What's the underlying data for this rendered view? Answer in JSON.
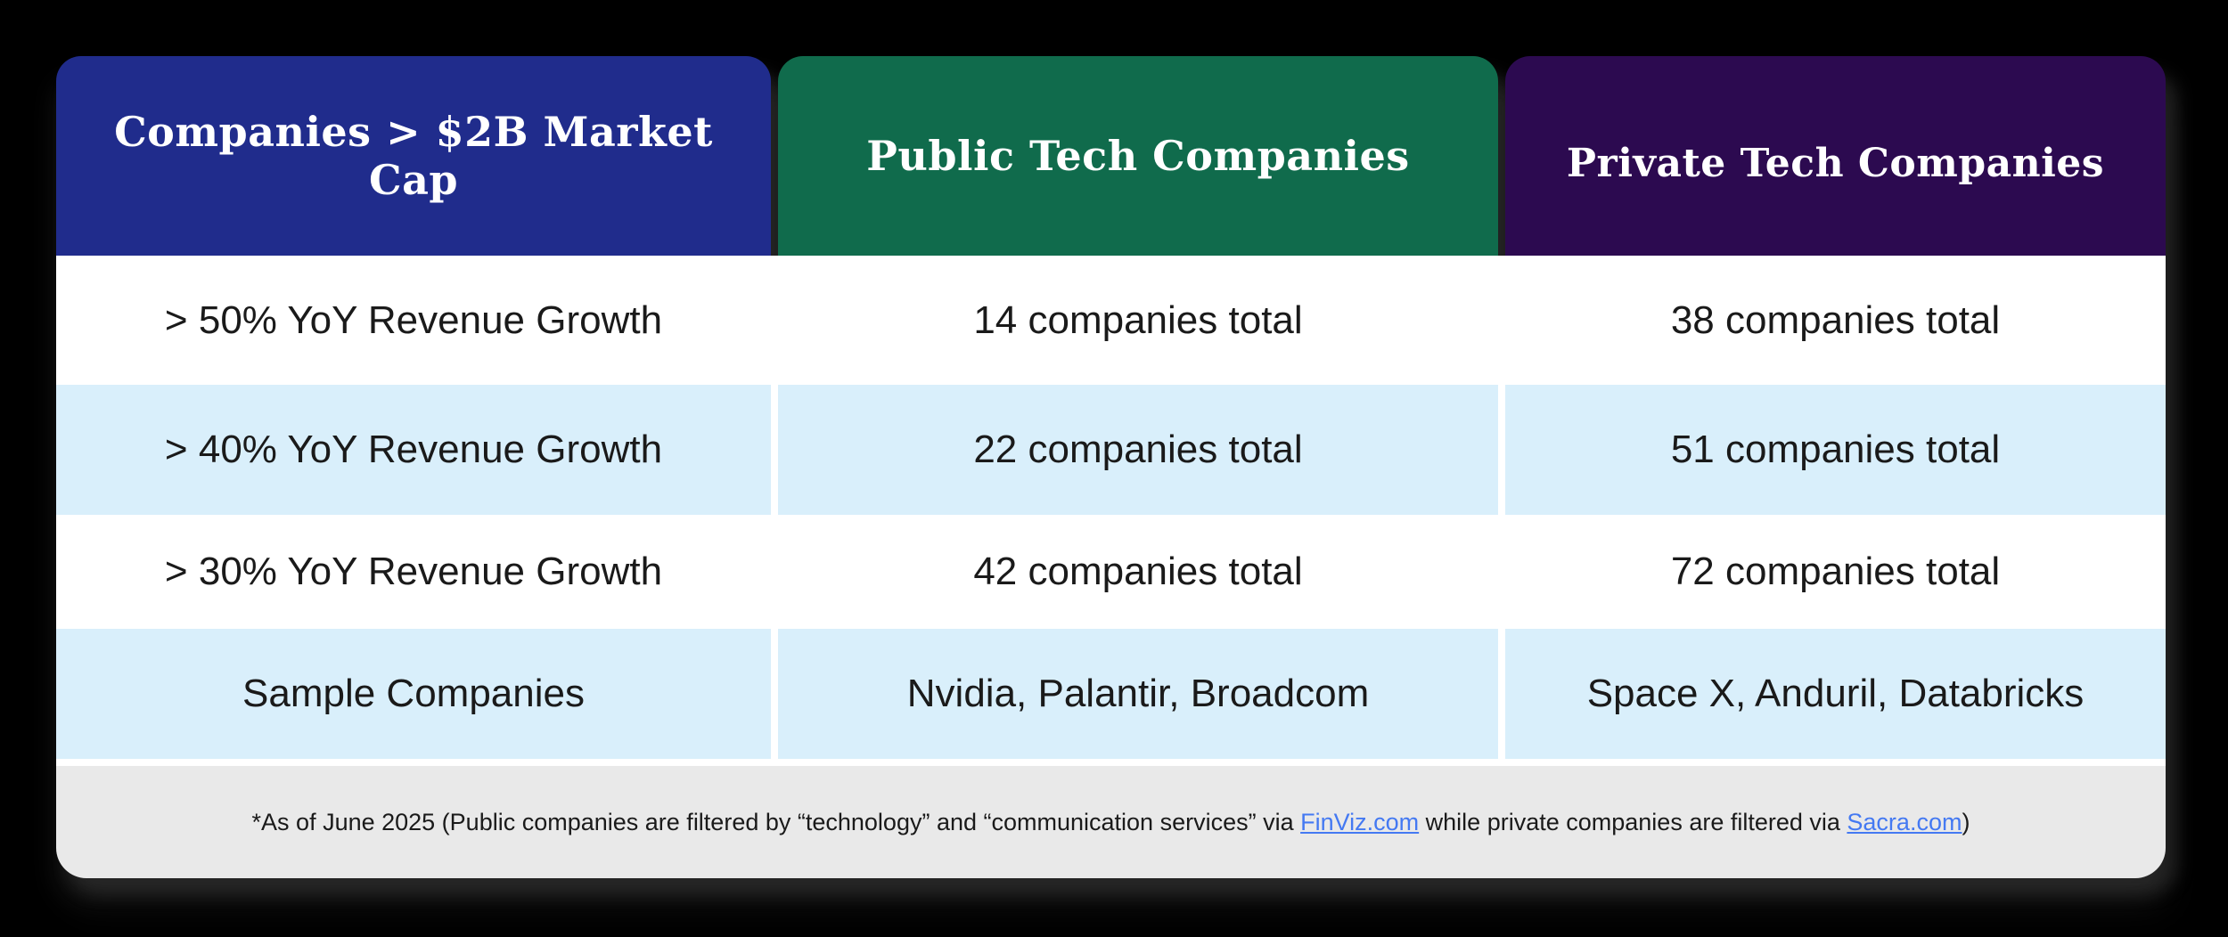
{
  "canvas": {
    "background": "#000000"
  },
  "table": {
    "headers": [
      {
        "id": "market-cap",
        "label": "Companies > $2B Market Cap",
        "color": "#202c8c"
      },
      {
        "id": "public",
        "label": "Public Tech Companies",
        "color": "#106b4c"
      },
      {
        "id": "private",
        "label": "Private Tech Companies",
        "color": "#2c0a50"
      }
    ],
    "rows": [
      {
        "criteria": "> 50% YoY Revenue Growth",
        "public": "14 companies total",
        "private": "38 companies total"
      },
      {
        "criteria": "> 40% YoY Revenue Growth",
        "public": "22 companies total",
        "private": "51 companies total"
      },
      {
        "criteria": "> 30% YoY Revenue Growth",
        "public": "42 companies total",
        "private": "72 companies total"
      },
      {
        "criteria": "Sample Companies",
        "public": "Nvidia, Palantir, Broadcom",
        "private": "Space X, Anduril, Databricks"
      }
    ],
    "footnote": {
      "prefix": "*As of June 2025 (Public companies are filtered by “technology” and “communication services” via ",
      "link_finviz": "FinViz.com",
      "middle": " while private companies are filtered via ",
      "link_sacra": "Sacra.com",
      "suffix": ")"
    }
  },
  "colors": {
    "header_text": "#ffffff",
    "body_text": "#1a1a1a",
    "stripe": "#d9effb",
    "row_white": "#ffffff",
    "footer_bg": "#e9e9e9",
    "link": "#4479f2"
  }
}
